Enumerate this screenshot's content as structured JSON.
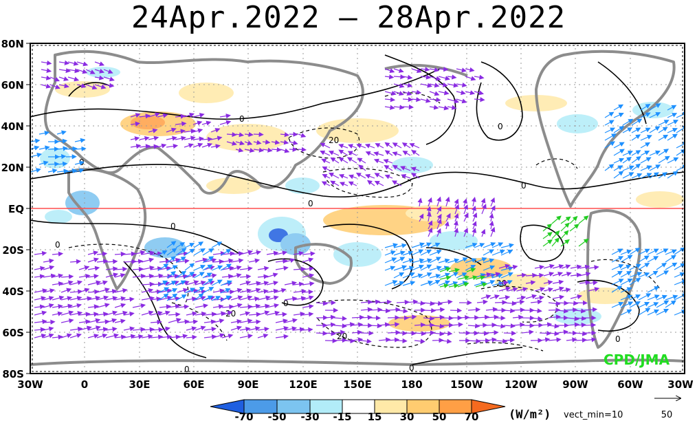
{
  "title": "24Apr.2022 – 28Apr.2022",
  "lat_labels": [
    "80N",
    "60N",
    "40N",
    "20N",
    "EQ",
    "20S",
    "40S",
    "60S",
    "80S"
  ],
  "lon_labels": [
    "30W",
    "0",
    "30E",
    "60E",
    "90E",
    "120E",
    "150E",
    "180",
    "150W",
    "120W",
    "90W",
    "60W",
    "30W"
  ],
  "contour_labels": [
    "0",
    "0",
    "20",
    "0",
    "0",
    "0",
    "0",
    "0",
    "20",
    "20",
    "0",
    "0",
    "20",
    "0",
    "0"
  ],
  "colorbar": {
    "ticks": [
      "-70",
      "-50",
      "-30",
      "-15",
      "15",
      "30",
      "50",
      "70"
    ],
    "colors": [
      "#1f5fe0",
      "#4c9be8",
      "#7cc4f0",
      "#b2ecf8",
      "#ffffff",
      "#ffe9a8",
      "#ffcc70",
      "#ff9f45",
      "#f56a1f"
    ],
    "units": "(W/m²)",
    "vector_note": "vect_min=10"
  },
  "reference_vector": {
    "value": "50"
  },
  "credit": "CPD/JMA",
  "colors": {
    "vector_purple": "#8a2be2",
    "vector_blue": "#1e90ff",
    "vector_green": "#22cc22",
    "equator": "#ff4d4d",
    "land": "#8c8c8c"
  }
}
